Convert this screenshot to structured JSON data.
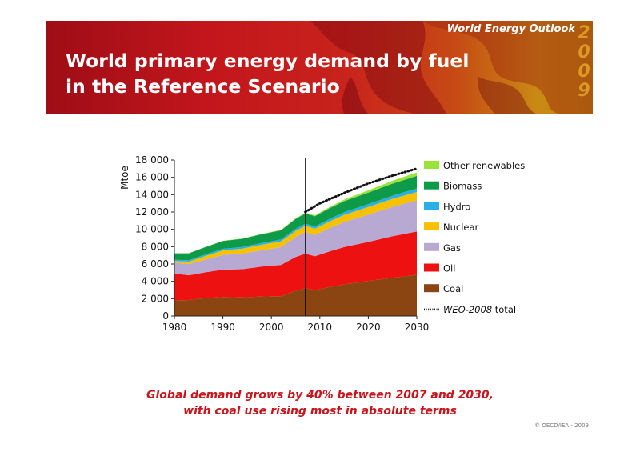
{
  "header": {
    "title_line1": "World primary energy demand by fuel",
    "title_line2": "in the Reference Scenario",
    "brand": "World Energy Outlook",
    "year": "2009"
  },
  "caption": {
    "line1": "Global demand grows by 40% between 2007 and 2030,",
    "line2": "with coal use rising most in absolute terms"
  },
  "copyright": "© OECD/IEA - 2009",
  "colors": {
    "Coal": "#8b4513",
    "Oil": "#ee1111",
    "Gas": "#b8a9d3",
    "Nuclear": "#f6c100",
    "Hydro": "#2bb0e6",
    "Biomass": "#0e9b49",
    "Other renewables": "#9be23a"
  },
  "chart_data": {
    "type": "area",
    "ylabel": "Mtoe",
    "xlabel": "",
    "xlim": [
      1980,
      2030
    ],
    "ylim": [
      0,
      18000
    ],
    "xticks": [
      1980,
      1990,
      2000,
      2010,
      2020,
      2030
    ],
    "yticks": [
      0,
      2000,
      4000,
      6000,
      8000,
      10000,
      12000,
      14000,
      16000,
      18000
    ],
    "ytick_labels": [
      "0",
      "2 000",
      "4 000",
      "6 000",
      "8 000",
      "10 000",
      "12 000",
      "14 000",
      "16 000",
      "18 000"
    ],
    "projection_start": 2007,
    "legend_position": "right",
    "x": [
      1980,
      1983,
      1986,
      1990,
      1994,
      1998,
      2002,
      2005,
      2007,
      2009,
      2012,
      2015,
      2020,
      2025,
      2030
    ],
    "series": [
      {
        "name": "Coal",
        "values": [
          1800,
          1850,
          2050,
          2200,
          2150,
          2250,
          2300,
          2900,
          3200,
          3000,
          3350,
          3650,
          4050,
          4400,
          4750
        ]
      },
      {
        "name": "Oil",
        "values": [
          3100,
          2850,
          2950,
          3150,
          3250,
          3450,
          3600,
          3900,
          4000,
          3900,
          4100,
          4300,
          4500,
          4800,
          5000
        ]
      },
      {
        "name": "Gas",
        "values": [
          1250,
          1300,
          1450,
          1700,
          1800,
          1900,
          2050,
          2300,
          2500,
          2450,
          2700,
          2900,
          3150,
          3400,
          3600
        ]
      },
      {
        "name": "Nuclear",
        "values": [
          190,
          280,
          400,
          520,
          560,
          620,
          670,
          710,
          710,
          720,
          770,
          820,
          880,
          920,
          960
        ]
      },
      {
        "name": "Hydro",
        "values": [
          150,
          160,
          170,
          185,
          195,
          210,
          220,
          240,
          250,
          260,
          280,
          300,
          330,
          360,
          400
        ]
      },
      {
        "name": "Biomass",
        "values": [
          750,
          800,
          850,
          900,
          950,
          1000,
          1050,
          1150,
          1180,
          1190,
          1230,
          1280,
          1330,
          1400,
          1450
        ]
      },
      {
        "name": "Other renewables",
        "values": [
          10,
          12,
          15,
          35,
          40,
          45,
          55,
          70,
          80,
          100,
          130,
          180,
          260,
          330,
          400
        ]
      }
    ],
    "reference_line": {
      "name": "WEO-2008 total",
      "x": [
        2007,
        2010,
        2015,
        2020,
        2025,
        2030
      ],
      "values": [
        12000,
        13000,
        14200,
        15300,
        16200,
        17000
      ]
    }
  }
}
